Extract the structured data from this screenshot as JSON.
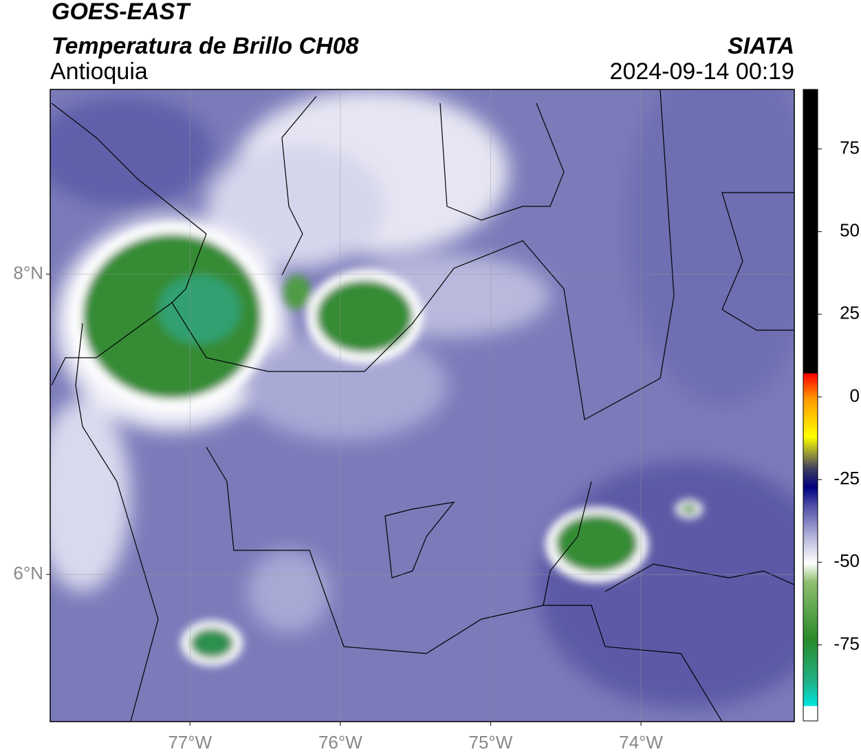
{
  "header": {
    "title": "GOES-EAST",
    "subtitle": "Temperatura de Brillo CH08",
    "region": "Antioquia",
    "source": "SIATA",
    "datetime": "2024-09-14 00:19"
  },
  "map": {
    "xlim": [
      -77.93,
      -72.98
    ],
    "ylim": [
      5.02,
      9.23
    ],
    "xticks": [
      {
        "value": -77,
        "label": "77°W"
      },
      {
        "value": -76,
        "label": "76°W"
      },
      {
        "value": -75,
        "label": "75°W"
      },
      {
        "value": -74,
        "label": "74°W"
      }
    ],
    "yticks": [
      {
        "value": 6,
        "label": "6°N"
      },
      {
        "value": 8,
        "label": "8°N"
      }
    ],
    "grid": true
  },
  "colorbar": {
    "lim": [
      -98,
      93
    ],
    "ticks": [
      -75,
      -50,
      -25,
      0,
      25,
      50,
      75
    ]
  }
}
